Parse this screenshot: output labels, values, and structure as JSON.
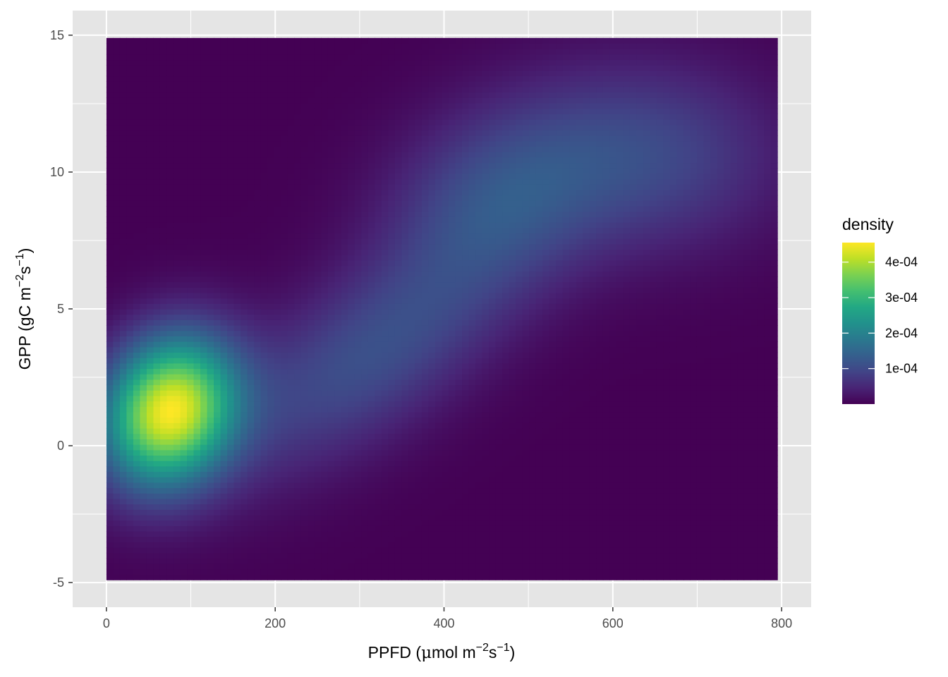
{
  "chart_data": {
    "type": "heatmap",
    "title": "",
    "xlabel": {
      "main": "PPFD (",
      "mu": "μ",
      "unit": "mol m",
      "sup1": "−2",
      "mid": "s",
      "sup2": "−1",
      "end": ")"
    },
    "ylabel": {
      "main": "GPP (gC m",
      "sup1": "−2",
      "mid": "s",
      "sup2": "−1",
      "end": ")"
    },
    "x_range": [
      0,
      795
    ],
    "y_range": [
      -4.9,
      14.9
    ],
    "xlim": [
      -40,
      835
    ],
    "ylim": [
      -5.9,
      15.9
    ],
    "x_ticks": [
      0,
      200,
      400,
      600,
      800
    ],
    "x_tick_labels": [
      "0",
      "200",
      "400",
      "600",
      "800"
    ],
    "y_ticks": [
      -5,
      0,
      5,
      10,
      15
    ],
    "y_tick_labels": [
      "-5",
      "0",
      "5",
      "10",
      "15"
    ],
    "grid": true,
    "colormap": "viridis",
    "density_peaks": [
      {
        "x": 75,
        "y": 1.3,
        "density": 0.000455
      },
      {
        "x": 310,
        "y": 3.3,
        "density": 0.000112
      },
      {
        "x": 460,
        "y": 9.0,
        "density": 0.000135
      },
      {
        "x": 640,
        "y": 10.6,
        "density": 0.00011
      }
    ],
    "legend": {
      "title": "density",
      "position": "right",
      "range": [
        0.0,
        0.000455
      ],
      "ticks": [
        0.0001,
        0.0002,
        0.0003,
        0.0004
      ],
      "tick_labels": [
        "1e-04",
        "2e-04",
        "3e-04",
        "4e-04"
      ]
    },
    "colors": {
      "panel_background": "#e5e5e5",
      "grid": "#ffffff"
    }
  }
}
